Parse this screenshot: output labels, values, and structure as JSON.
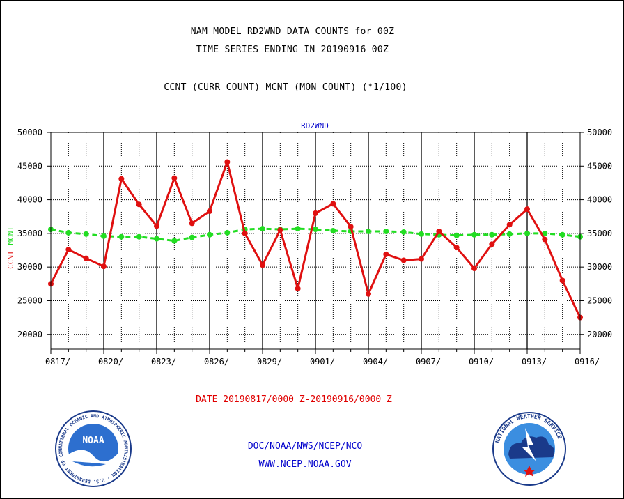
{
  "title_lines": [
    "NAM MODEL RD2WND DATA COUNTS for 00Z",
    "TIME SERIES ENDING IN 20190916 00Z"
  ],
  "legend_text": "CCNT (CURR COUNT) MCNT (MON COUNT) (*1/100)",
  "date_range": "DATE 20190817/0000 Z-20190916/0000 Z",
  "footer": {
    "org": "DOC/NOAA/NWS/NCEP/NCO",
    "url": "WWW.NCEP.NOAA.GOV"
  },
  "logos": {
    "left": "noaa-logo",
    "right": "nws-logo"
  },
  "colors": {
    "ccnt": "#e01010",
    "mcnt": "#22dd22",
    "label": "#0000cc"
  },
  "chart_data": {
    "type": "line",
    "title": "RD2WND",
    "ylabel_parts": [
      {
        "text": "CCNT",
        "color": "#e01010"
      },
      {
        "text": "MCNT",
        "color": "#22dd22"
      }
    ],
    "ylim": [
      17800,
      50000
    ],
    "yticks": [
      20000,
      25000,
      30000,
      35000,
      40000,
      45000,
      50000
    ],
    "ytick_labels": [
      "20000",
      "25000",
      "30000",
      "35000",
      "40000",
      "45000",
      "50000"
    ],
    "xtick_labels": [
      "0817/",
      "0820/",
      "0823/",
      "0826/",
      "0829/",
      "0901/",
      "0904/",
      "0907/",
      "0910/",
      "0913/",
      "0916/"
    ],
    "x_days": 30,
    "grid": true,
    "series": [
      {
        "name": "CCNT",
        "color": "#e01010",
        "style": "solid",
        "values": [
          27500,
          32600,
          31300,
          30100,
          43100,
          39300,
          36100,
          43200,
          36500,
          38300,
          45600,
          35000,
          30300,
          35500,
          26800,
          38000,
          39400,
          36000,
          26000,
          31900,
          31000,
          31200,
          35300,
          32900,
          29800,
          33400,
          36300,
          38600,
          34100,
          28000,
          22500
        ]
      },
      {
        "name": "MCNT",
        "color": "#22dd22",
        "style": "dashed",
        "values": [
          35600,
          35100,
          34900,
          34600,
          34500,
          34500,
          34200,
          33900,
          34400,
          34800,
          35100,
          35600,
          35700,
          35600,
          35700,
          35600,
          35400,
          35300,
          35300,
          35300,
          35200,
          34900,
          34800,
          34700,
          34800,
          34800,
          34900,
          35000,
          35000,
          34800,
          34500
        ]
      }
    ]
  }
}
